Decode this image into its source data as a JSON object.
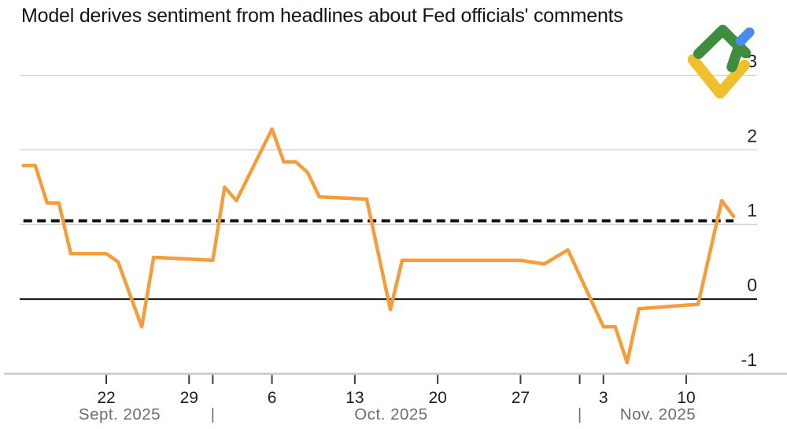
{
  "chart": {
    "title": "Model derives sentiment from headlines about Fed officials' comments"
  },
  "logo": {
    "name": "litefinance-logo",
    "colors": {
      "green": "#3F8C3F",
      "blue": "#478CEF",
      "yellow": "#F0C02C"
    }
  },
  "chart_data": {
    "type": "line",
    "title": "Model derives sentiment from headlines about Fed officials' comments",
    "grid": "horizontal",
    "colors": {
      "line": "#F59D3C",
      "gridline": "#cccccc",
      "axis_line": "#c9c9c9",
      "zero_line": "#1f1f1f",
      "dashed_line": "#141414",
      "tick_label": "#1c1c1c",
      "month_label": "#6d6d6d",
      "y_label": "#222222"
    },
    "y_axis": {
      "side": "right",
      "ticks": [
        3,
        2,
        1,
        0,
        -1
      ],
      "tick_labels": [
        "3",
        "2",
        "1",
        "0",
        "-1"
      ],
      "range": [
        -1.35,
        3.1
      ]
    },
    "x_axis": {
      "range": [
        "2025-09-15",
        "2025-11-14"
      ],
      "week_ticks": [
        {
          "date": "2025-09-22",
          "label": "22"
        },
        {
          "date": "2025-09-29",
          "label": "29"
        },
        {
          "date": "2025-10-06",
          "label": "6"
        },
        {
          "date": "2025-10-13",
          "label": "13"
        },
        {
          "date": "2025-10-20",
          "label": "20"
        },
        {
          "date": "2025-10-27",
          "label": "27"
        },
        {
          "date": "2025-11-03",
          "label": "3"
        },
        {
          "date": "2025-11-10",
          "label": "10"
        }
      ],
      "month_boundaries": [
        "2025-10-01",
        "2025-11-01"
      ],
      "month_labels": [
        "Sept. 2025",
        "Oct. 2025",
        "Nov. 2025"
      ],
      "separator": "|"
    },
    "reference_lines": [
      {
        "name": "dashed-baseline",
        "value": 1.05,
        "style": "dashed"
      },
      {
        "name": "zero-line",
        "value": 0,
        "style": "solid"
      }
    ],
    "series": [
      {
        "name": "headline-sentiment",
        "color": "#F59D3C",
        "points": [
          {
            "date": "2025-09-15",
            "value": 1.79
          },
          {
            "date": "2025-09-16",
            "value": 1.79
          },
          {
            "date": "2025-09-17",
            "value": 1.29
          },
          {
            "date": "2025-09-18",
            "value": 1.29
          },
          {
            "date": "2025-09-19",
            "value": 0.61
          },
          {
            "date": "2025-09-22",
            "value": 0.61
          },
          {
            "date": "2025-09-23",
            "value": 0.5
          },
          {
            "date": "2025-09-25",
            "value": -0.37
          },
          {
            "date": "2025-09-26",
            "value": 0.56
          },
          {
            "date": "2025-10-01",
            "value": 0.52
          },
          {
            "date": "2025-10-02",
            "value": 1.5
          },
          {
            "date": "2025-10-03",
            "value": 1.32
          },
          {
            "date": "2025-10-06",
            "value": 2.28
          },
          {
            "date": "2025-10-07",
            "value": 1.84
          },
          {
            "date": "2025-10-08",
            "value": 1.84
          },
          {
            "date": "2025-10-09",
            "value": 1.7
          },
          {
            "date": "2025-10-10",
            "value": 1.37
          },
          {
            "date": "2025-10-14",
            "value": 1.34
          },
          {
            "date": "2025-10-16",
            "value": -0.14
          },
          {
            "date": "2025-10-17",
            "value": 0.52
          },
          {
            "date": "2025-10-27",
            "value": 0.52
          },
          {
            "date": "2025-10-29",
            "value": 0.47
          },
          {
            "date": "2025-10-31",
            "value": 0.66
          },
          {
            "date": "2025-11-03",
            "value": -0.37
          },
          {
            "date": "2025-11-04",
            "value": -0.37
          },
          {
            "date": "2025-11-05",
            "value": -0.85
          },
          {
            "date": "2025-11-06",
            "value": -0.13
          },
          {
            "date": "2025-11-10",
            "value": -0.08
          },
          {
            "date": "2025-11-11",
            "value": -0.07
          },
          {
            "date": "2025-11-13",
            "value": 1.32
          },
          {
            "date": "2025-11-14",
            "value": 1.11
          }
        ]
      }
    ]
  }
}
